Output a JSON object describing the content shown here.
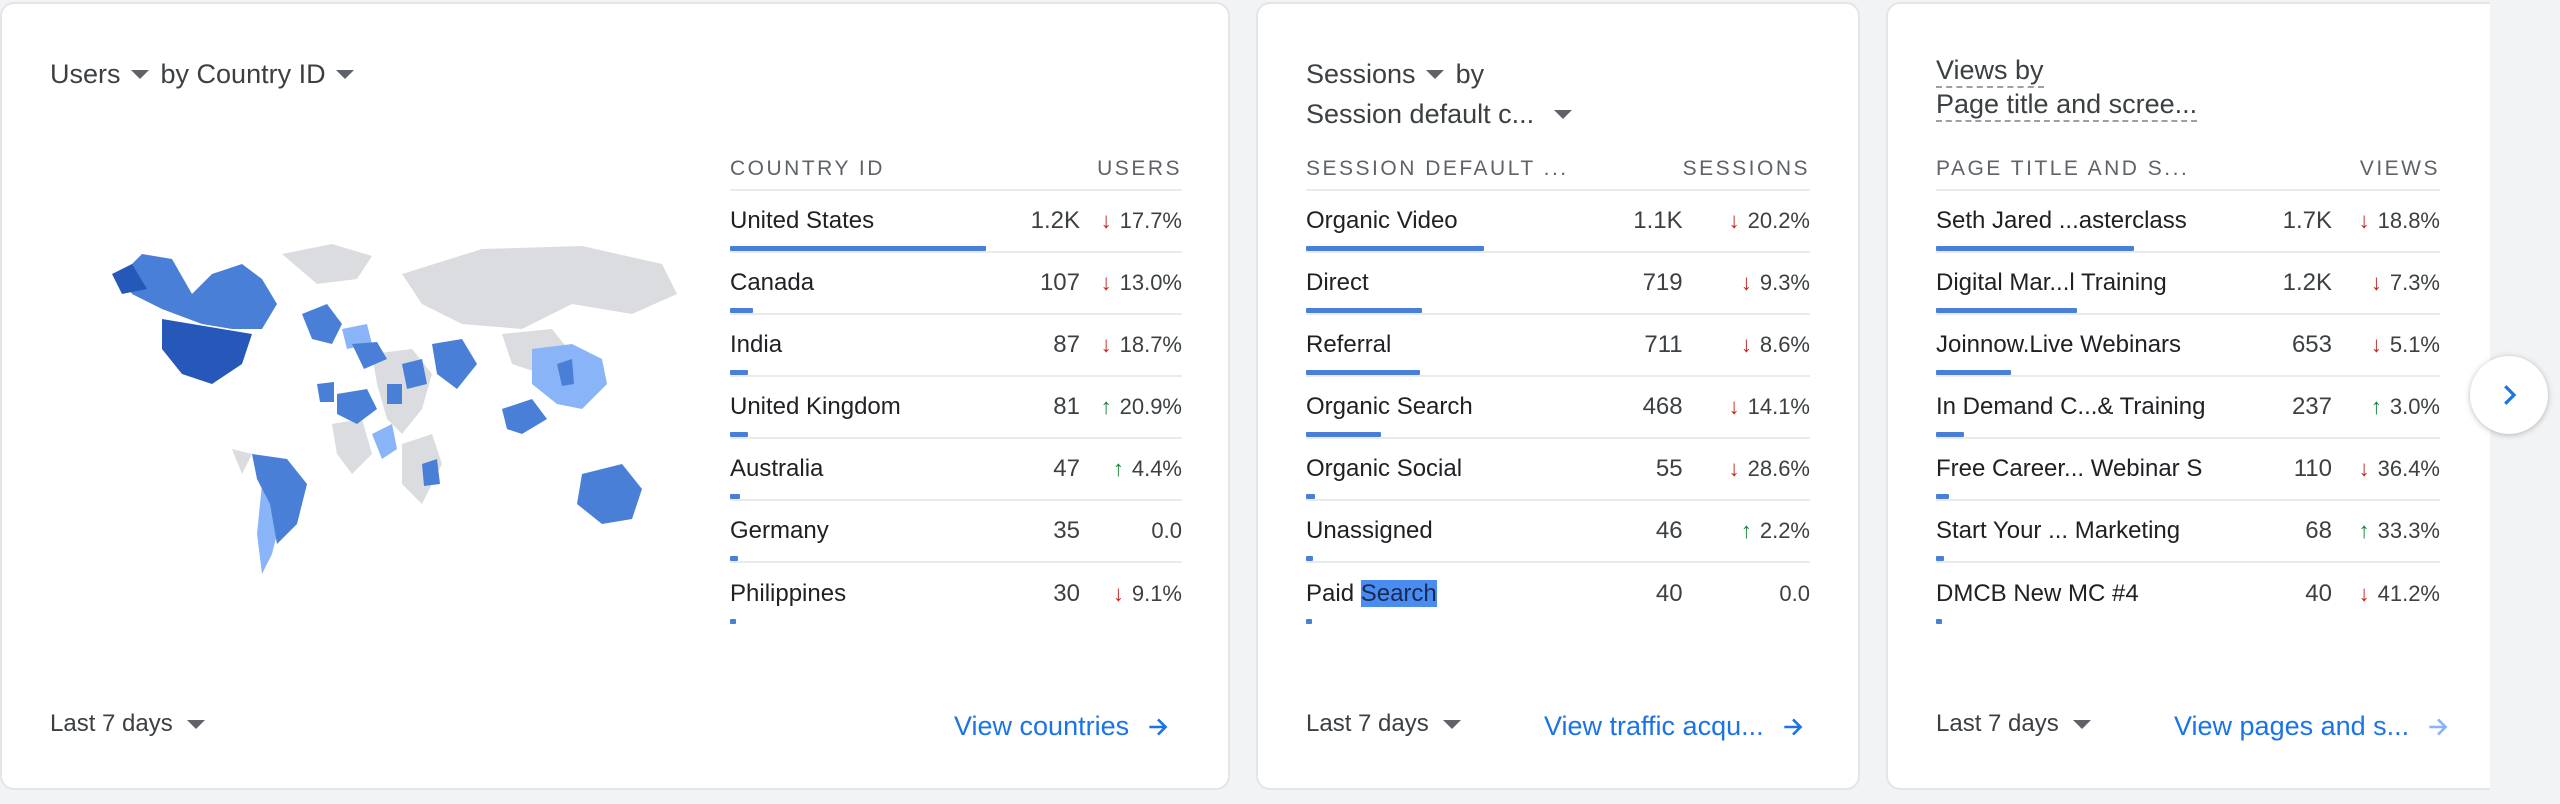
{
  "colors": {
    "accent": "#1a73e8",
    "bar": "#4a7fd8",
    "down": "#c5221f",
    "up": "#188038"
  },
  "users_card": {
    "metric": "Users",
    "by": "by Country ID",
    "col_dim": "COUNTRY ID",
    "col_metric": "USERS",
    "rows": [
      {
        "name": "United States",
        "value": "1.2K",
        "dir": "down",
        "change": "17.7%",
        "share": 1.0
      },
      {
        "name": "Canada",
        "value": "107",
        "dir": "down",
        "change": "13.0%",
        "share": 0.09
      },
      {
        "name": "India",
        "value": "87",
        "dir": "down",
        "change": "18.7%",
        "share": 0.07
      },
      {
        "name": "United Kingdom",
        "value": "81",
        "dir": "up",
        "change": "20.9%",
        "share": 0.07
      },
      {
        "name": "Australia",
        "value": "47",
        "dir": "up",
        "change": "4.4%",
        "share": 0.04
      },
      {
        "name": "Germany",
        "value": "35",
        "dir": "",
        "change": "0.0",
        "share": 0.03
      },
      {
        "name": "Philippines",
        "value": "30",
        "dir": "down",
        "change": "9.1%",
        "share": 0.025
      }
    ],
    "range": "Last 7 days",
    "link": "View countries"
  },
  "sessions_card": {
    "metric": "Sessions",
    "by": "by",
    "dimension": "Session default c...",
    "col_dim": "SESSION DEFAULT ...",
    "col_metric": "SESSIONS",
    "rows": [
      {
        "name": "Organic Video",
        "value": "1.1K",
        "dir": "down",
        "change": "20.2%",
        "share": 1.0
      },
      {
        "name": "Direct",
        "value": "719",
        "dir": "down",
        "change": "9.3%",
        "share": 0.65
      },
      {
        "name": "Referral",
        "value": "711",
        "dir": "down",
        "change": "8.6%",
        "share": 0.64
      },
      {
        "name": "Organic Search",
        "value": "468",
        "dir": "down",
        "change": "14.1%",
        "share": 0.42
      },
      {
        "name": "Organic Social",
        "value": "55",
        "dir": "down",
        "change": "28.6%",
        "share": 0.05
      },
      {
        "name": "Unassigned",
        "value": "46",
        "dir": "up",
        "change": "2.2%",
        "share": 0.04
      },
      {
        "name": "Paid",
        "name_highlight": "Search",
        "value": "40",
        "dir": "",
        "change": "0.0",
        "share": 0.035
      }
    ],
    "range": "Last 7 days",
    "link": "View traffic acqu..."
  },
  "views_card": {
    "metric": "Views by",
    "dimension": "Page title and scree...",
    "col_dim": "PAGE TITLE AND S...",
    "col_metric": "VIEWS",
    "rows": [
      {
        "name": "Seth Jared ...asterclass",
        "value": "1.7K",
        "dir": "down",
        "change": "18.8%",
        "share": 1.0
      },
      {
        "name": "Digital Mar...l Training",
        "value": "1.2K",
        "dir": "down",
        "change": "7.3%",
        "share": 0.71
      },
      {
        "name": "Joinnow.Live Webinars",
        "value": "653",
        "dir": "down",
        "change": "5.1%",
        "share": 0.38
      },
      {
        "name": "In Demand C...& Training",
        "value": "237",
        "dir": "up",
        "change": "3.0%",
        "share": 0.14
      },
      {
        "name": "Free Career... Webinar S",
        "value": "110",
        "dir": "down",
        "change": "36.4%",
        "share": 0.065
      },
      {
        "name": "Start Your ... Marketing",
        "value": "68",
        "dir": "up",
        "change": "33.3%",
        "share": 0.04
      },
      {
        "name": "DMCB New MC #4",
        "value": "40",
        "dir": "down",
        "change": "41.2%",
        "share": 0.024
      }
    ],
    "range": "Last 7 days",
    "link": "View pages and s..."
  }
}
